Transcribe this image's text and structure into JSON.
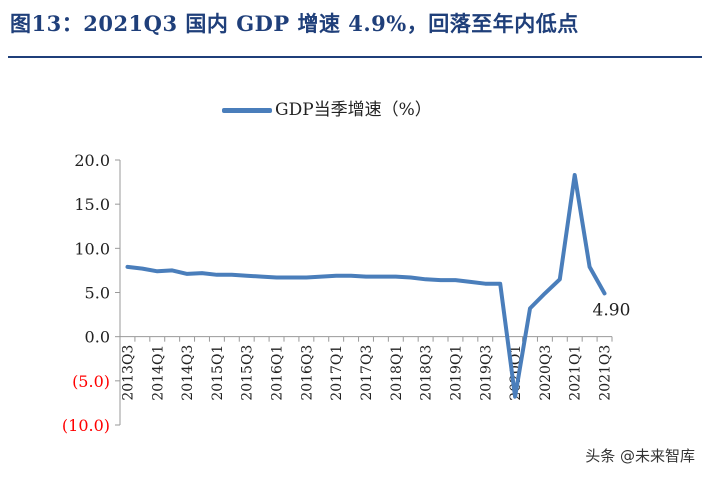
{
  "title": "图13：2021Q3 国内 GDP 增速 4.9%，回落至年内低点",
  "watermark": "头条 @未来智库",
  "colors": {
    "line": "#4a7ebb",
    "negative": "#ff0000",
    "title": "#1f3f7a"
  },
  "chart_data": {
    "type": "line",
    "title": "图13：2021Q3 国内 GDP 增速 4.9%，回落至年内低点",
    "xlabel": "",
    "ylabel": "",
    "ylim": [
      -10,
      20
    ],
    "yticks": [
      20,
      15,
      10,
      5,
      0,
      -5,
      -10
    ],
    "ytick_labels": [
      "20.0",
      "15.0",
      "10.0",
      "5.0",
      "0.0",
      "(5.0)",
      "(10.0)"
    ],
    "grid": false,
    "legend": "top-center",
    "x": [
      "2013Q3",
      "2013Q4",
      "2014Q1",
      "2014Q2",
      "2014Q3",
      "2014Q4",
      "2015Q1",
      "2015Q2",
      "2015Q3",
      "2015Q4",
      "2016Q1",
      "2016Q2",
      "2016Q3",
      "2016Q4",
      "2017Q1",
      "2017Q2",
      "2017Q3",
      "2017Q4",
      "2018Q1",
      "2018Q2",
      "2018Q3",
      "2018Q4",
      "2019Q1",
      "2019Q2",
      "2019Q3",
      "2019Q4",
      "2020Q1",
      "2020Q2",
      "2020Q3",
      "2020Q4",
      "2021Q1",
      "2021Q2",
      "2021Q3"
    ],
    "xtick_labels": [
      "2013Q3",
      "2014Q1",
      "2014Q3",
      "2015Q1",
      "2015Q3",
      "2016Q1",
      "2016Q3",
      "2017Q1",
      "2017Q3",
      "2018Q1",
      "2018Q3",
      "2019Q1",
      "2019Q3",
      "2020Q1",
      "2020Q3",
      "2021Q1",
      "2021Q3"
    ],
    "series": [
      {
        "name": "GDP当季增速（%）",
        "values": [
          7.9,
          7.7,
          7.4,
          7.5,
          7.1,
          7.2,
          7.0,
          7.0,
          6.9,
          6.8,
          6.7,
          6.7,
          6.7,
          6.8,
          6.9,
          6.9,
          6.8,
          6.8,
          6.8,
          6.7,
          6.5,
          6.4,
          6.4,
          6.2,
          6.0,
          6.0,
          -6.8,
          3.2,
          4.9,
          6.5,
          18.3,
          7.9,
          4.9
        ]
      }
    ],
    "annotations": [
      {
        "label": "4.90",
        "at": "2021Q3"
      }
    ]
  }
}
